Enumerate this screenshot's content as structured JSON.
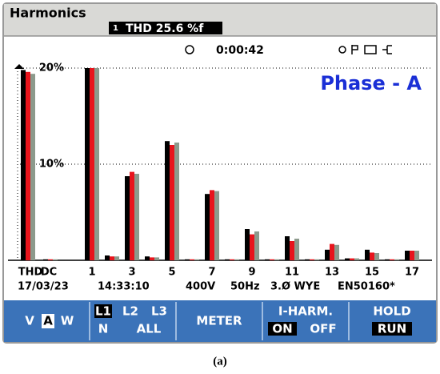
{
  "header": {
    "title": "Harmonics",
    "readout_index": "1",
    "readout": "THD 25.6 %f"
  },
  "status": {
    "timer": "0:00:42"
  },
  "chart_data": {
    "type": "bar",
    "title": "Phase - A",
    "categories": [
      "THD",
      "DC",
      "1",
      null,
      "3",
      null,
      "5",
      null,
      "7",
      null,
      "9",
      null,
      "11",
      null,
      "13",
      null,
      "15",
      null,
      "17"
    ],
    "series": [
      {
        "name": "L1",
        "color": "#000000",
        "values": [
          19.8,
          0.1,
          20,
          0.5,
          8.75,
          0.4,
          12.4,
          0.1,
          6.9,
          0.1,
          3.25,
          0.1,
          2.5,
          0.1,
          1.1,
          0.2,
          1.1,
          0.1,
          1.0
        ]
      },
      {
        "name": "L2",
        "color": "#e8141c",
        "values": [
          19.6,
          0.1,
          20,
          0.4,
          9.2,
          0.3,
          12.0,
          0.1,
          7.3,
          0.1,
          2.7,
          0.1,
          2.0,
          0.1,
          1.7,
          0.2,
          0.8,
          0.1,
          1.0
        ]
      },
      {
        "name": "L3",
        "color": "#8c9a8c",
        "values": [
          19.4,
          0.1,
          20,
          0.4,
          9.0,
          0.3,
          12.25,
          0.1,
          7.2,
          0.1,
          3.0,
          0.1,
          2.25,
          0.1,
          1.6,
          0.2,
          0.75,
          0.1,
          1.0
        ]
      }
    ],
    "ylim": [
      0,
      20
    ],
    "yticks": [
      {
        "value": 10,
        "label": "10%"
      },
      {
        "value": 20,
        "label": "20%"
      }
    ],
    "grid": true
  },
  "footer": {
    "date": "17/03/23",
    "time": "14:33:10",
    "voltage": "400V",
    "frequency": "50Hz",
    "config": "3.Ø WYE",
    "standard": "EN50160*"
  },
  "softkeys": {
    "units": [
      "V",
      "A",
      "W"
    ],
    "phase_extra": [
      "N",
      "ALL"
    ],
    "meter": "METER",
    "iharm": "I-HARM.",
    "iharm_options": [
      "ON",
      "OFF"
    ],
    "hold": "HOLD",
    "run": "RUN"
  },
  "caption": "(a)"
}
